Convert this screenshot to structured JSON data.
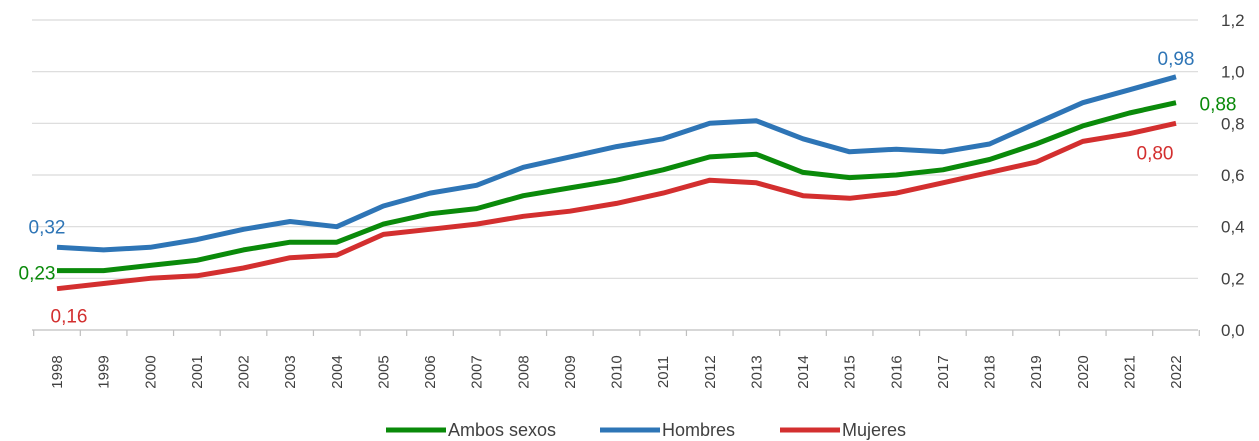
{
  "chart_data": {
    "type": "line",
    "title": "",
    "xlabel": "",
    "ylabel": "",
    "ylim": [
      0,
      1.2
    ],
    "yticks": [
      "0,0",
      "0,2",
      "0,4",
      "0,6",
      "0,8",
      "1,0",
      "1,2"
    ],
    "ytick_values": [
      0,
      0.2,
      0.4,
      0.6,
      0.8,
      1.0,
      1.2
    ],
    "y_axis_side": "right",
    "grid": true,
    "legend_position": "bottom",
    "x": [
      "1998",
      "1999",
      "2000",
      "2001",
      "2002",
      "2003",
      "2004",
      "2005",
      "2006",
      "2007",
      "2008",
      "2009",
      "2010",
      "2011",
      "2012",
      "2013",
      "2014",
      "2015",
      "2016",
      "2017",
      "2018",
      "2019",
      "2020",
      "2021",
      "2022"
    ],
    "series": [
      {
        "name": "Ambos sexos",
        "color": "#0a8a0a",
        "values": [
          0.23,
          0.23,
          0.25,
          0.27,
          0.31,
          0.34,
          0.34,
          0.41,
          0.45,
          0.47,
          0.52,
          0.55,
          0.58,
          0.62,
          0.67,
          0.68,
          0.61,
          0.59,
          0.6,
          0.62,
          0.66,
          0.72,
          0.79,
          0.84,
          0.88
        ],
        "labels": [
          {
            "index": 0,
            "text": "0,23"
          },
          {
            "index": 24,
            "text": "0,88"
          }
        ]
      },
      {
        "name": "Hombres",
        "color": "#2e75b6",
        "values": [
          0.32,
          0.31,
          0.32,
          0.35,
          0.39,
          0.42,
          0.4,
          0.48,
          0.53,
          0.56,
          0.63,
          0.67,
          0.71,
          0.74,
          0.8,
          0.81,
          0.74,
          0.69,
          0.7,
          0.69,
          0.72,
          0.8,
          0.88,
          0.93,
          0.98
        ],
        "labels": [
          {
            "index": 0,
            "text": "0,32"
          },
          {
            "index": 24,
            "text": "0,98"
          }
        ]
      },
      {
        "name": "Mujeres",
        "color": "#d32f2f",
        "values": [
          0.16,
          0.18,
          0.2,
          0.21,
          0.24,
          0.28,
          0.29,
          0.37,
          0.39,
          0.41,
          0.44,
          0.46,
          0.49,
          0.53,
          0.58,
          0.57,
          0.52,
          0.51,
          0.53,
          0.57,
          0.61,
          0.65,
          0.73,
          0.76,
          0.8
        ],
        "labels": [
          {
            "index": 0,
            "text": "0,16"
          },
          {
            "index": 24,
            "text": "0,80"
          }
        ]
      }
    ]
  }
}
